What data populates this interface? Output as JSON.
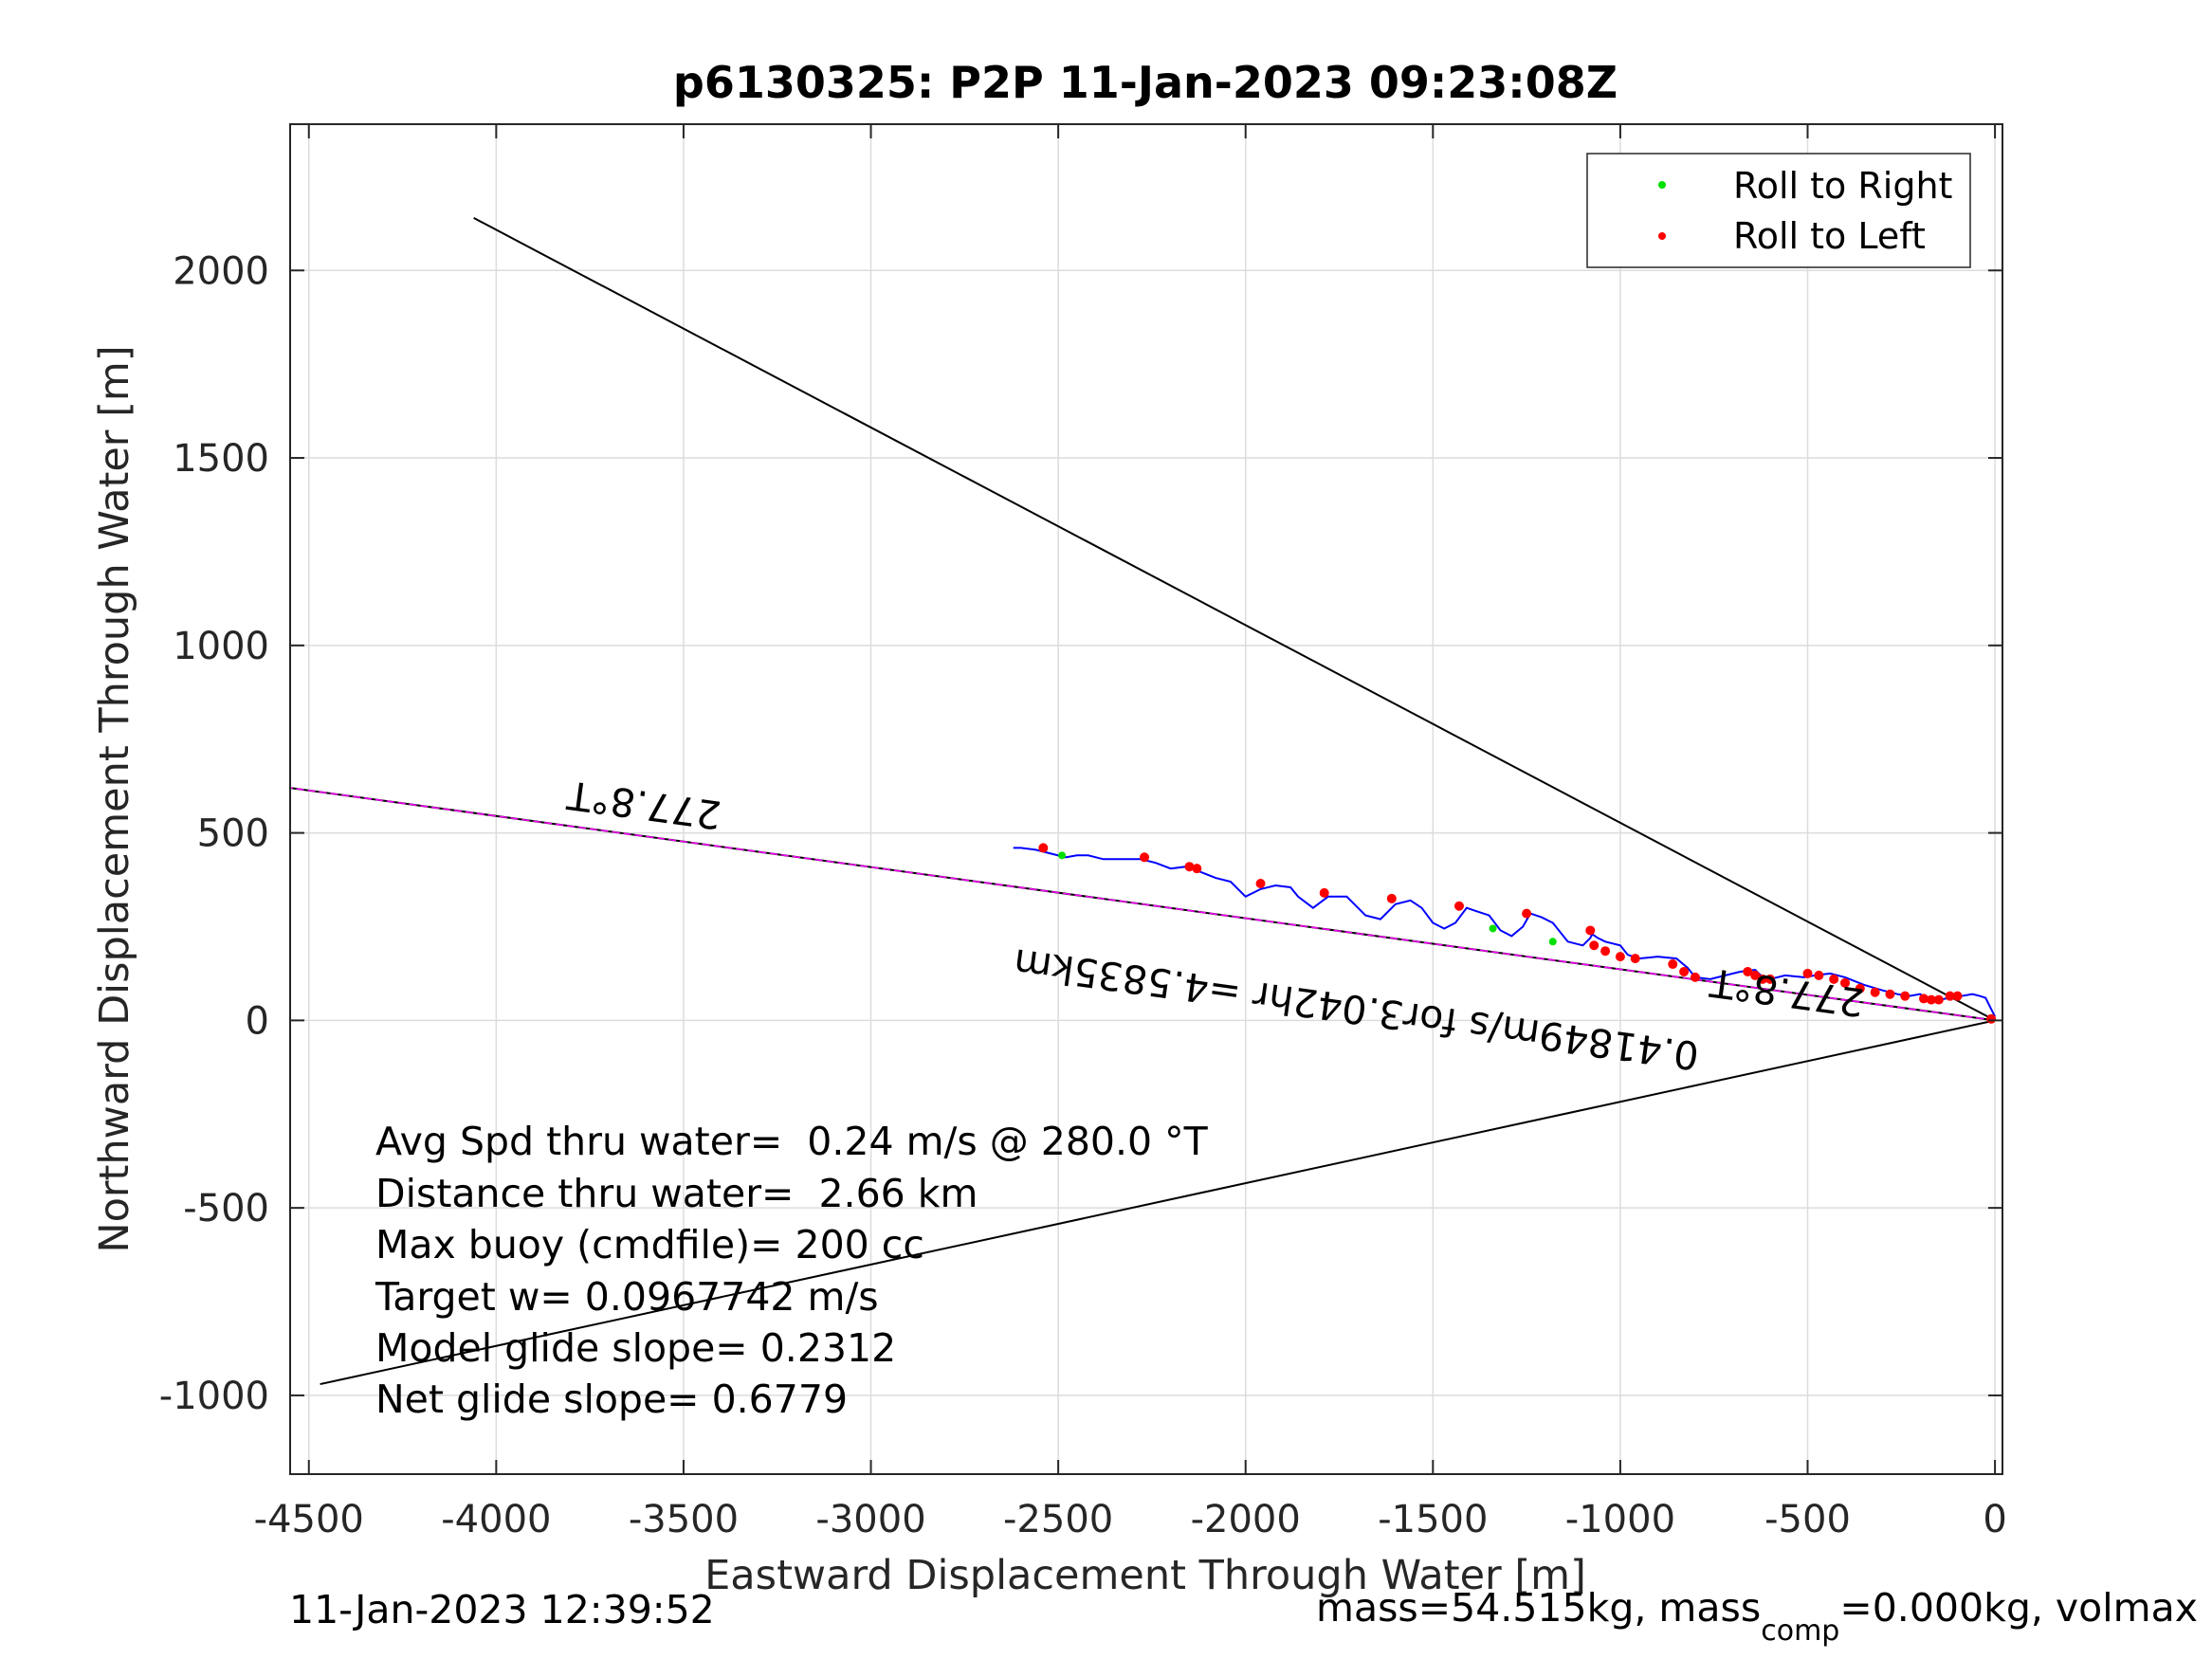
{
  "chart_data": {
    "type": "scatter",
    "title": "p6130325: P2P 11-Jan-2023 09:23:08Z",
    "xlabel": "Eastward Displacement Through Water [m]",
    "ylabel": "Northward Displacement Through Water [m]",
    "xlim": [
      -4550,
      20
    ],
    "ylim": [
      -1210,
      2390
    ],
    "xticks": [
      -4500,
      -4000,
      -3500,
      -3000,
      -2500,
      -2000,
      -1500,
      -1000,
      -500,
      0
    ],
    "xtick_labels": [
      "-4500",
      "-4000",
      "-3500",
      "-3000",
      "-2500",
      "-2000",
      "-1500",
      "-1000",
      "-500",
      "0"
    ],
    "yticks": [
      -1000,
      -500,
      0,
      500,
      1000,
      1500,
      2000
    ],
    "ytick_labels": [
      "-1000",
      "-500",
      "0",
      "500",
      "1000",
      "1500",
      "2000"
    ],
    "grid": true,
    "legend_position": "top-right",
    "legend": [
      {
        "label": "Roll to Right",
        "color": "#00e000"
      },
      {
        "label": "Roll to Left",
        "color": "#ff0000"
      }
    ],
    "lines": [
      {
        "role": "upper-bound",
        "color": "#000000",
        "x": [
          0,
          -4060
        ],
        "y": [
          0,
          2140
        ]
      },
      {
        "role": "lower-bound",
        "color": "#000000",
        "x": [
          0,
          -4470
        ],
        "y": [
          0,
          -970
        ]
      },
      {
        "role": "heading-line",
        "color": "#000000",
        "x": [
          0,
          -4550
        ],
        "y": [
          0,
          620
        ]
      },
      {
        "role": "heading-line-magenta",
        "color": "#ff00ff",
        "x": [
          0,
          -4550
        ],
        "y": [
          0,
          620
        ]
      }
    ],
    "track": {
      "color": "#0000ff",
      "x": [
        0,
        -25,
        -40,
        -60,
        -90,
        -120,
        -150,
        -180,
        -200,
        -230,
        -260,
        -300,
        -350,
        -400,
        -440,
        -480,
        -510,
        -560,
        -600,
        -620,
        -640,
        -680,
        -720,
        -760,
        -800,
        -820,
        -850,
        -900,
        -950,
        -980,
        -1000,
        -1040,
        -1060,
        -1075,
        -1080,
        -1100,
        -1140,
        -1180,
        -1210,
        -1240,
        -1260,
        -1290,
        -1320,
        -1350,
        -1380,
        -1410,
        -1440,
        -1470,
        -1500,
        -1530,
        -1560,
        -1600,
        -1640,
        -1680,
        -1700,
        -1730,
        -1780,
        -1820,
        -1860,
        -1880,
        -1920,
        -1960,
        -2000,
        -2040,
        -2080,
        -2130,
        -2160,
        -2200,
        -2240,
        -2280,
        -2310,
        -2340,
        -2380,
        -2420,
        -2450,
        -2480,
        -2520,
        -2560,
        -2600,
        -2620
      ],
      "y": [
        10,
        60,
        65,
        70,
        65,
        60,
        55,
        60,
        70,
        65,
        70,
        80,
        95,
        115,
        125,
        120,
        115,
        120,
        110,
        115,
        135,
        130,
        120,
        110,
        115,
        140,
        165,
        170,
        165,
        175,
        200,
        210,
        220,
        230,
        220,
        200,
        210,
        260,
        275,
        285,
        250,
        225,
        240,
        280,
        290,
        300,
        260,
        245,
        260,
        300,
        320,
        310,
        270,
        280,
        300,
        330,
        330,
        300,
        330,
        355,
        360,
        350,
        330,
        370,
        380,
        400,
        410,
        405,
        420,
        430,
        430,
        430,
        430,
        440,
        440,
        435,
        445,
        455,
        460,
        460
      ]
    },
    "roll_left_points": [
      {
        "x": -10,
        "y": 4
      },
      {
        "x": -100,
        "y": 65
      },
      {
        "x": -120,
        "y": 65
      },
      {
        "x": -150,
        "y": 55
      },
      {
        "x": -170,
        "y": 55
      },
      {
        "x": -190,
        "y": 58
      },
      {
        "x": -240,
        "y": 65
      },
      {
        "x": -280,
        "y": 70
      },
      {
        "x": -320,
        "y": 75
      },
      {
        "x": -360,
        "y": 85
      },
      {
        "x": -400,
        "y": 100
      },
      {
        "x": -430,
        "y": 110
      },
      {
        "x": -470,
        "y": 120
      },
      {
        "x": -500,
        "y": 125
      },
      {
        "x": -600,
        "y": 110
      },
      {
        "x": -620,
        "y": 110
      },
      {
        "x": -640,
        "y": 120
      },
      {
        "x": -660,
        "y": 130
      },
      {
        "x": -800,
        "y": 115
      },
      {
        "x": -830,
        "y": 130
      },
      {
        "x": -860,
        "y": 150
      },
      {
        "x": -960,
        "y": 165
      },
      {
        "x": -1000,
        "y": 170
      },
      {
        "x": -1040,
        "y": 185
      },
      {
        "x": -1070,
        "y": 200
      },
      {
        "x": -1080,
        "y": 240
      },
      {
        "x": -1250,
        "y": 285
      },
      {
        "x": -1430,
        "y": 305
      },
      {
        "x": -1610,
        "y": 325
      },
      {
        "x": -1790,
        "y": 340
      },
      {
        "x": -1960,
        "y": 365
      },
      {
        "x": -2130,
        "y": 405
      },
      {
        "x": -2150,
        "y": 410
      },
      {
        "x": -2270,
        "y": 435
      },
      {
        "x": -2540,
        "y": 460
      }
    ],
    "roll_right_points": [
      {
        "x": -2490,
        "y": 440
      },
      {
        "x": -1340,
        "y": 245
      },
      {
        "x": -1180,
        "y": 210
      }
    ],
    "text_annotations": [
      {
        "text": "277.8°T",
        "x": -3600,
        "y": 610,
        "rotation": 187.8
      },
      {
        "text": "277.8°T",
        "x": -550,
        "y": 110,
        "rotation": 187.8
      },
      {
        "text": "0.41849m/s for3.042hr =4.5835km",
        "x": -1700,
        "y": 65,
        "rotation": 187.8
      }
    ],
    "stats": [
      "Avg Spd thru water=  0.24 m/s @ 280.0 °T",
      "Distance thru water=  2.66 km",
      "Max buoy (cmdfile)= 200 cc",
      "Target w= 0.0967742 m/s",
      "Model glide slope= 0.2312",
      "Net glide slope= 0.6779"
    ],
    "footer_left": "11-Jan-2023 12:39:52",
    "footer_right": {
      "prefix": "mass=54.515kg, mass",
      "subscript": "comp",
      "suffix": "=0.000kg, volmax"
    }
  }
}
